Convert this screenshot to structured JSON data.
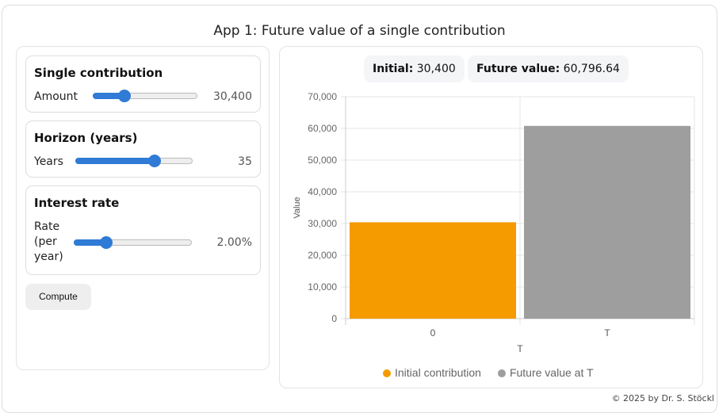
{
  "title": "App 1: Future value of a single contribution",
  "controls": [
    {
      "heading": "Single contribution",
      "label": "Amount",
      "value": "30,400",
      "slider_fraction": 0.3
    },
    {
      "heading": "Horizon (years)",
      "label": "Years",
      "value": "35",
      "slider_fraction": 0.68
    },
    {
      "heading": "Interest rate",
      "label": "Rate (per year)",
      "value": "2.00%",
      "slider_fraction": 0.27
    }
  ],
  "compute_label": "Compute",
  "summary": {
    "initial_label": "Initial:",
    "initial_value": "30,400",
    "future_label": "Future value:",
    "future_value": "60,796.64"
  },
  "chart_data": {
    "type": "bar",
    "categories": [
      "0",
      "T"
    ],
    "values": [
      30400,
      60796.64
    ],
    "colors": [
      "#f59b00",
      "#9e9e9e"
    ],
    "xlabel": "T",
    "ylabel": "Value",
    "ylim": [
      0,
      70000
    ],
    "yticks": [
      "0",
      "10,000",
      "20,000",
      "30,000",
      "40,000",
      "50,000",
      "60,000",
      "70,000"
    ],
    "grid": true,
    "legend_placement": "bottom",
    "legend": [
      {
        "name": "Initial contribution",
        "color": "#f59b00"
      },
      {
        "name": "Future value at T",
        "color": "#9e9e9e"
      }
    ]
  },
  "footer": "© 2025 by Dr. S. Stöckl"
}
